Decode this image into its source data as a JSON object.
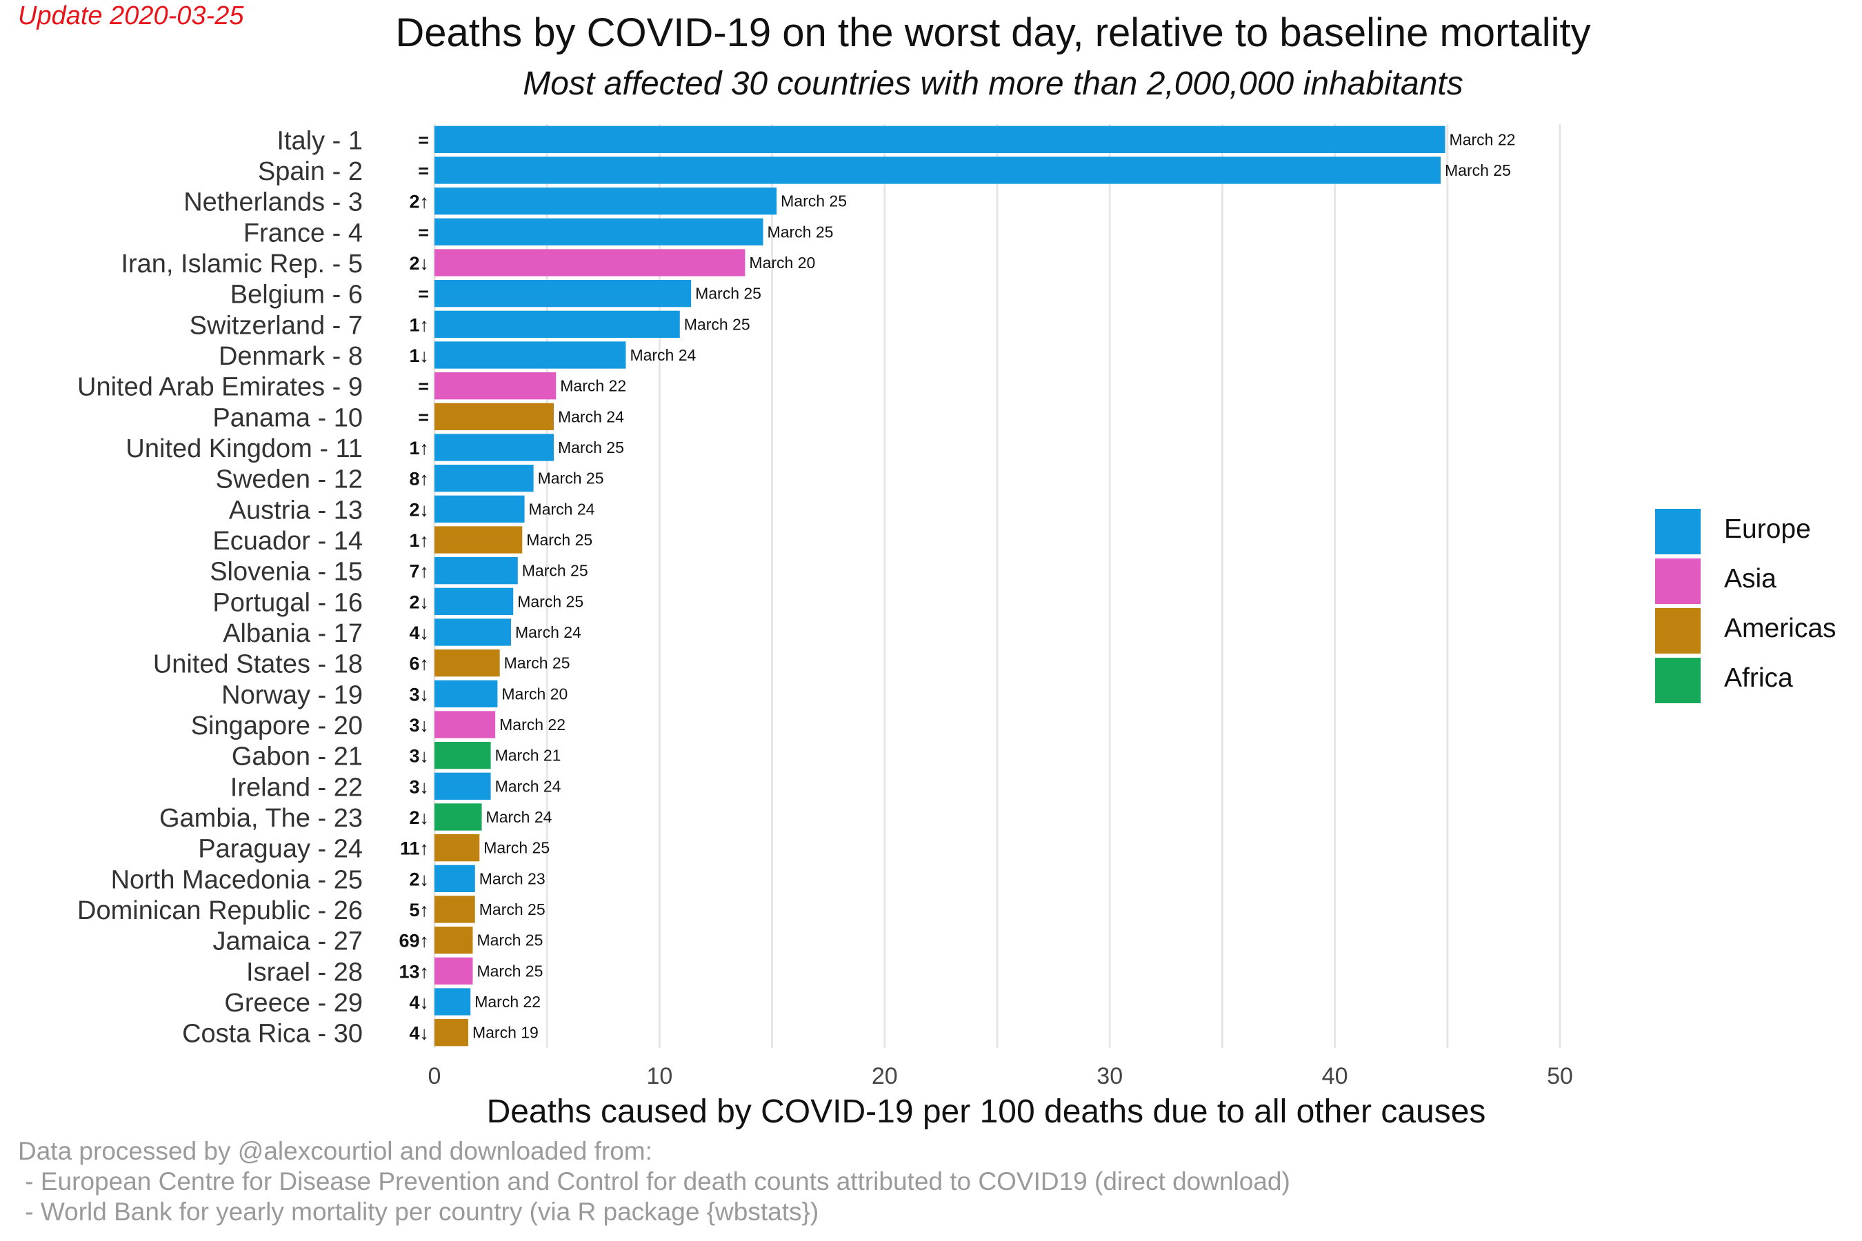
{
  "update_label": "Update 2020-03-25",
  "source": {
    "line1": "Data processed by @alexcourtiol and downloaded from:",
    "line2": " - European Centre for Disease Prevention and Control for death counts attributed to COVID19 (direct download)",
    "line3": " - World Bank for yearly mortality per country (via R package {wbstats})"
  },
  "colors": {
    "Europe": "#1399e0",
    "Asia": "#e05ac0",
    "Americas": "#c0820f",
    "Africa": "#17a95a",
    "grid": "#e6e6e6"
  },
  "chart_data": {
    "type": "bar",
    "orientation": "horizontal",
    "title": "Deaths by COVID-19 on the worst day, relative to baseline mortality",
    "subtitle": "Most affected 30 countries with more than 2,000,000 inhabitants",
    "xlabel": "Deaths caused by COVID-19 per 100 deaths due to all other causes",
    "ylabel": "",
    "xlim": [
      0,
      50
    ],
    "x_ticks": [
      0,
      10,
      20,
      30,
      40,
      50
    ],
    "grid": true,
    "legend_position": "right",
    "legend": [
      "Europe",
      "Asia",
      "Americas",
      "Africa"
    ],
    "categories": [
      "Italy - 1",
      "Spain - 2",
      "Netherlands - 3",
      "France - 4",
      "Iran, Islamic Rep. - 5",
      "Belgium - 6",
      "Switzerland - 7",
      "Denmark - 8",
      "United Arab Emirates - 9",
      "Panama - 10",
      "United Kingdom - 11",
      "Sweden - 12",
      "Austria - 13",
      "Ecuador - 14",
      "Slovenia - 15",
      "Portugal - 16",
      "Albania - 17",
      "United States - 18",
      "Norway - 19",
      "Singapore - 20",
      "Gabon - 21",
      "Ireland - 22",
      "Gambia, The - 23",
      "Paraguay - 24",
      "North Macedonia - 25",
      "Dominican Republic - 26",
      "Jamaica - 27",
      "Israel - 28",
      "Greece - 29",
      "Costa Rica - 30"
    ],
    "values": [
      44.9,
      44.7,
      15.2,
      14.6,
      13.8,
      11.4,
      10.9,
      8.5,
      5.4,
      5.3,
      5.3,
      4.4,
      4.0,
      3.9,
      3.7,
      3.5,
      3.4,
      2.9,
      2.8,
      2.7,
      2.5,
      2.5,
      2.1,
      2.0,
      1.8,
      1.8,
      1.7,
      1.7,
      1.6,
      1.5
    ],
    "regions": [
      "Europe",
      "Europe",
      "Europe",
      "Europe",
      "Asia",
      "Europe",
      "Europe",
      "Europe",
      "Asia",
      "Americas",
      "Europe",
      "Europe",
      "Europe",
      "Americas",
      "Europe",
      "Europe",
      "Europe",
      "Americas",
      "Europe",
      "Asia",
      "Africa",
      "Europe",
      "Africa",
      "Americas",
      "Europe",
      "Americas",
      "Americas",
      "Asia",
      "Europe",
      "Americas"
    ],
    "dates": [
      "March 22",
      "March 25",
      "March 25",
      "March 25",
      "March 20",
      "March 25",
      "March 25",
      "March 24",
      "March 22",
      "March 24",
      "March 25",
      "March 25",
      "March 24",
      "March 25",
      "March 25",
      "March 25",
      "March 24",
      "March 25",
      "March 20",
      "March 22",
      "March 21",
      "March 24",
      "March 24",
      "March 25",
      "March 23",
      "March 25",
      "March 25",
      "March 25",
      "March 22",
      "March 19"
    ],
    "rank_changes": [
      "=",
      "=",
      "2↑",
      "=",
      "2↓",
      "=",
      "1↑",
      "1↓",
      "=",
      "=",
      "1↑",
      "8↑",
      "2↓",
      "1↑",
      "7↑",
      "2↓",
      "4↓",
      "6↑",
      "3↓",
      "3↓",
      "3↓",
      "3↓",
      "2↓",
      "11↑",
      "2↓",
      "5↑",
      "69↑",
      "13↑",
      "4↓",
      "4↓"
    ]
  }
}
